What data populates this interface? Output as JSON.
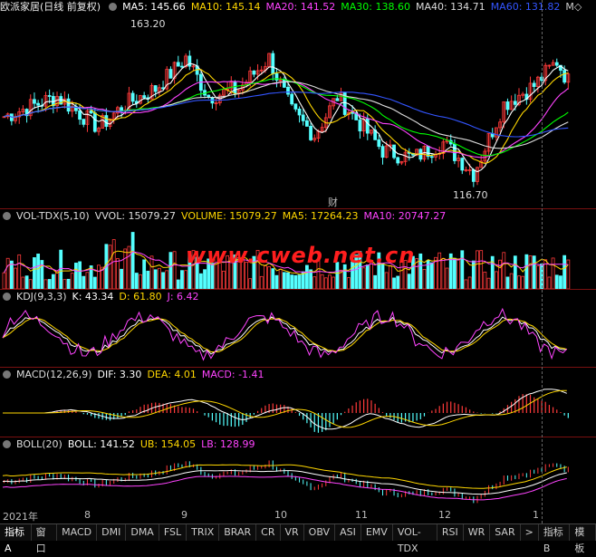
{
  "stock": {
    "name": "欧派家居(日线 前复权)",
    "ma5": "MA5: 145.66",
    "ma10": "MA10: 145.14",
    "ma20": "MA20: 141.52",
    "ma30": "MA30: 138.60",
    "ma40": "MA40: 134.71",
    "ma60": "MA60: 131.82",
    "more": "M◇",
    "high_label": "163.20",
    "low_label": "116.70",
    "event_label": "财"
  },
  "volume": {
    "title": "VOL-TDX(5,10)",
    "vvol": "VVOL: 15079.27",
    "volume": "VOLUME: 15079.27",
    "ma5": "MA5: 17264.23",
    "ma10": "MA10: 20747.27"
  },
  "kdj": {
    "title": "KDJ(9,3,3)",
    "k": "K: 43.34",
    "d": "D: 61.80",
    "j": "J: 6.42"
  },
  "macd": {
    "title": "MACD(12,26,9)",
    "dif": "DIF: 3.30",
    "dea": "DEA: 4.01",
    "macd": "MACD: -1.41"
  },
  "boll": {
    "title": "BOLL(20)",
    "boll": "BOLL: 141.52",
    "ub": "UB: 154.05",
    "lb": "LB: 128.99"
  },
  "xaxis": {
    "labels": [
      "2021年",
      "8",
      "9",
      "10",
      "11",
      "12",
      "1"
    ]
  },
  "watermark": "www.cweb.net.cn",
  "tabs": [
    "指标A",
    "窗口",
    "MACD",
    "DMI",
    "DMA",
    "FSL",
    "TRIX",
    "BRAR",
    "CR",
    "VR",
    "OBV",
    "ASI",
    "EMV",
    "VOL-TDX",
    "RSI",
    "WR",
    "SAR",
    ">",
    "指标B",
    "模板"
  ],
  "colors": {
    "up": "#ff3a3a",
    "down": "#54ffff",
    "ma5": "#ffffff",
    "ma10": "#ffd700",
    "ma20": "#ff44ff",
    "ma30": "#00ff00",
    "ma40": "#dddddd",
    "ma60": "#3355ff"
  }
}
